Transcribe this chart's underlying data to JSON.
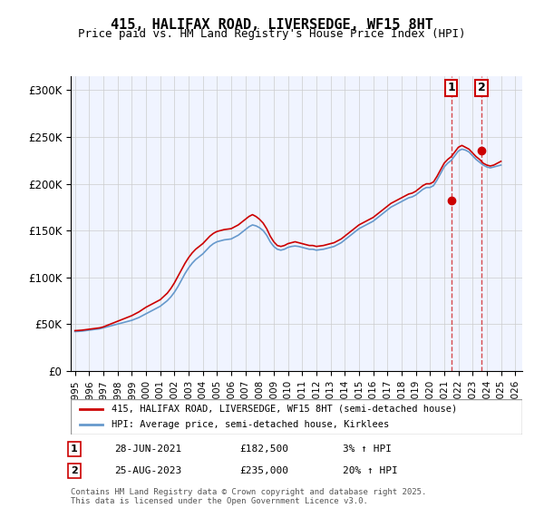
{
  "title": "415, HALIFAX ROAD, LIVERSEDGE, WF15 8HT",
  "subtitle": "Price paid vs. HM Land Registry's House Price Index (HPI)",
  "ylabel_ticks": [
    "£0",
    "£50K",
    "£100K",
    "£150K",
    "£200K",
    "£250K",
    "£300K"
  ],
  "ytick_values": [
    0,
    50000,
    100000,
    150000,
    200000,
    250000,
    300000
  ],
  "ylim": [
    0,
    315000
  ],
  "xlim_start": 1995.0,
  "xlim_end": 2026.5,
  "red_line_color": "#cc0000",
  "blue_line_color": "#6699cc",
  "grid_color": "#cccccc",
  "background_color": "#ffffff",
  "plot_bg_color": "#f0f4ff",
  "legend_label_red": "415, HALIFAX ROAD, LIVERSEDGE, WF15 8HT (semi-detached house)",
  "legend_label_blue": "HPI: Average price, semi-detached house, Kirklees",
  "annotation1_label": "1",
  "annotation1_date": "28-JUN-2021",
  "annotation1_price": "£182,500",
  "annotation1_hpi": "3% ↑ HPI",
  "annotation2_label": "2",
  "annotation2_date": "25-AUG-2023",
  "annotation2_price": "£235,000",
  "annotation2_hpi": "20% ↑ HPI",
  "footer": "Contains HM Land Registry data © Crown copyright and database right 2025.\nThis data is licensed under the Open Government Licence v3.0.",
  "sale1_x": 2021.49,
  "sale1_y": 182500,
  "sale2_x": 2023.65,
  "sale2_y": 235000,
  "hpi_data_x": [
    1995.0,
    1995.25,
    1995.5,
    1995.75,
    1996.0,
    1996.25,
    1996.5,
    1996.75,
    1997.0,
    1997.25,
    1997.5,
    1997.75,
    1998.0,
    1998.25,
    1998.5,
    1998.75,
    1999.0,
    1999.25,
    1999.5,
    1999.75,
    2000.0,
    2000.25,
    2000.5,
    2000.75,
    2001.0,
    2001.25,
    2001.5,
    2001.75,
    2002.0,
    2002.25,
    2002.5,
    2002.75,
    2003.0,
    2003.25,
    2003.5,
    2003.75,
    2004.0,
    2004.25,
    2004.5,
    2004.75,
    2005.0,
    2005.25,
    2005.5,
    2005.75,
    2006.0,
    2006.25,
    2006.5,
    2006.75,
    2007.0,
    2007.25,
    2007.5,
    2007.75,
    2008.0,
    2008.25,
    2008.5,
    2008.75,
    2009.0,
    2009.25,
    2009.5,
    2009.75,
    2010.0,
    2010.25,
    2010.5,
    2010.75,
    2011.0,
    2011.25,
    2011.5,
    2011.75,
    2012.0,
    2012.25,
    2012.5,
    2012.75,
    2013.0,
    2013.25,
    2013.5,
    2013.75,
    2014.0,
    2014.25,
    2014.5,
    2014.75,
    2015.0,
    2015.25,
    2015.5,
    2015.75,
    2016.0,
    2016.25,
    2016.5,
    2016.75,
    2017.0,
    2017.25,
    2017.5,
    2017.75,
    2018.0,
    2018.25,
    2018.5,
    2018.75,
    2019.0,
    2019.25,
    2019.5,
    2019.75,
    2020.0,
    2020.25,
    2020.5,
    2020.75,
    2021.0,
    2021.25,
    2021.5,
    2021.75,
    2022.0,
    2022.25,
    2022.5,
    2022.75,
    2023.0,
    2023.25,
    2023.5,
    2023.75,
    2024.0,
    2024.25,
    2024.5,
    2024.75,
    2025.0
  ],
  "hpi_data_y": [
    42000,
    42200,
    42500,
    43000,
    43500,
    44000,
    44500,
    45000,
    46000,
    47000,
    48000,
    49000,
    50000,
    51000,
    52000,
    53000,
    54000,
    55500,
    57000,
    59000,
    61000,
    63000,
    65000,
    67000,
    69000,
    72000,
    75000,
    79000,
    84000,
    90000,
    97000,
    104000,
    110000,
    115000,
    119000,
    122000,
    125000,
    129000,
    133000,
    136000,
    138000,
    139000,
    140000,
    140500,
    141000,
    143000,
    145000,
    148000,
    151000,
    154000,
    156000,
    155000,
    153000,
    150000,
    145000,
    138000,
    133000,
    130000,
    129000,
    130000,
    132000,
    133000,
    133500,
    133000,
    132000,
    131000,
    130000,
    130000,
    129000,
    129500,
    130000,
    131000,
    132000,
    133000,
    135000,
    137000,
    140000,
    143000,
    146000,
    149000,
    152000,
    154000,
    156000,
    158000,
    160000,
    163000,
    166000,
    169000,
    172000,
    175000,
    177000,
    179000,
    181000,
    183000,
    185000,
    186000,
    188000,
    191000,
    194000,
    196000,
    196000,
    198000,
    204000,
    211000,
    218000,
    222000,
    225000,
    230000,
    235000,
    237000,
    236000,
    234000,
    230000,
    226000,
    223000,
    220000,
    218000,
    217000,
    218000,
    219000,
    220000
  ],
  "red_data_x": [
    1995.0,
    1995.25,
    1995.5,
    1995.75,
    1996.0,
    1996.25,
    1996.5,
    1996.75,
    1997.0,
    1997.25,
    1997.5,
    1997.75,
    1998.0,
    1998.25,
    1998.5,
    1998.75,
    1999.0,
    1999.25,
    1999.5,
    1999.75,
    2000.0,
    2000.25,
    2000.5,
    2000.75,
    2001.0,
    2001.25,
    2001.5,
    2001.75,
    2002.0,
    2002.25,
    2002.5,
    2002.75,
    2003.0,
    2003.25,
    2003.5,
    2003.75,
    2004.0,
    2004.25,
    2004.5,
    2004.75,
    2005.0,
    2005.25,
    2005.5,
    2005.75,
    2006.0,
    2006.25,
    2006.5,
    2006.75,
    2007.0,
    2007.25,
    2007.5,
    2007.75,
    2008.0,
    2008.25,
    2008.5,
    2008.75,
    2009.0,
    2009.25,
    2009.5,
    2009.75,
    2010.0,
    2010.25,
    2010.5,
    2010.75,
    2011.0,
    2011.25,
    2011.5,
    2011.75,
    2012.0,
    2012.25,
    2012.5,
    2012.75,
    2013.0,
    2013.25,
    2013.5,
    2013.75,
    2014.0,
    2014.25,
    2014.5,
    2014.75,
    2015.0,
    2015.25,
    2015.5,
    2015.75,
    2016.0,
    2016.25,
    2016.5,
    2016.75,
    2017.0,
    2017.25,
    2017.5,
    2017.75,
    2018.0,
    2018.25,
    2018.5,
    2018.75,
    2019.0,
    2019.25,
    2019.5,
    2019.75,
    2020.0,
    2020.25,
    2020.5,
    2020.75,
    2021.0,
    2021.25,
    2021.5,
    2021.75,
    2022.0,
    2022.25,
    2022.5,
    2022.75,
    2023.0,
    2023.25,
    2023.5,
    2023.75,
    2024.0,
    2024.25,
    2024.5,
    2024.75,
    2025.0
  ],
  "red_data_y": [
    43000,
    43200,
    43500,
    44000,
    44500,
    45000,
    45500,
    46000,
    47000,
    48500,
    50000,
    51500,
    53000,
    54500,
    56000,
    57500,
    59000,
    61000,
    63000,
    65500,
    68000,
    70000,
    72000,
    74000,
    76000,
    79500,
    83000,
    88000,
    94000,
    101000,
    108000,
    115000,
    121000,
    126000,
    130000,
    133000,
    136000,
    140000,
    144000,
    147000,
    149000,
    150000,
    151000,
    151500,
    152000,
    154000,
    156000,
    159000,
    162000,
    165000,
    167000,
    165000,
    162000,
    158000,
    152000,
    144000,
    138000,
    134000,
    133000,
    134000,
    136000,
    137000,
    138000,
    137000,
    136000,
    135000,
    134000,
    134000,
    133000,
    133500,
    134000,
    135000,
    136000,
    137000,
    139000,
    141000,
    144000,
    147000,
    150000,
    153000,
    156000,
    158000,
    160000,
    162000,
    164000,
    167000,
    170000,
    173000,
    176000,
    179000,
    181000,
    183000,
    185000,
    187000,
    189000,
    190000,
    192000,
    195000,
    198000,
    200000,
    200000,
    202000,
    208000,
    215000,
    222000,
    226000,
    229000,
    234000,
    239000,
    241000,
    239000,
    237000,
    233000,
    229000,
    226000,
    222000,
    220000,
    219000,
    220000,
    222000,
    224000
  ],
  "xtick_years": [
    1995,
    1996,
    1997,
    1998,
    1999,
    2000,
    2001,
    2002,
    2003,
    2004,
    2005,
    2006,
    2007,
    2008,
    2009,
    2010,
    2011,
    2012,
    2013,
    2014,
    2015,
    2016,
    2017,
    2018,
    2019,
    2020,
    2021,
    2022,
    2023,
    2024,
    2025,
    2026
  ]
}
